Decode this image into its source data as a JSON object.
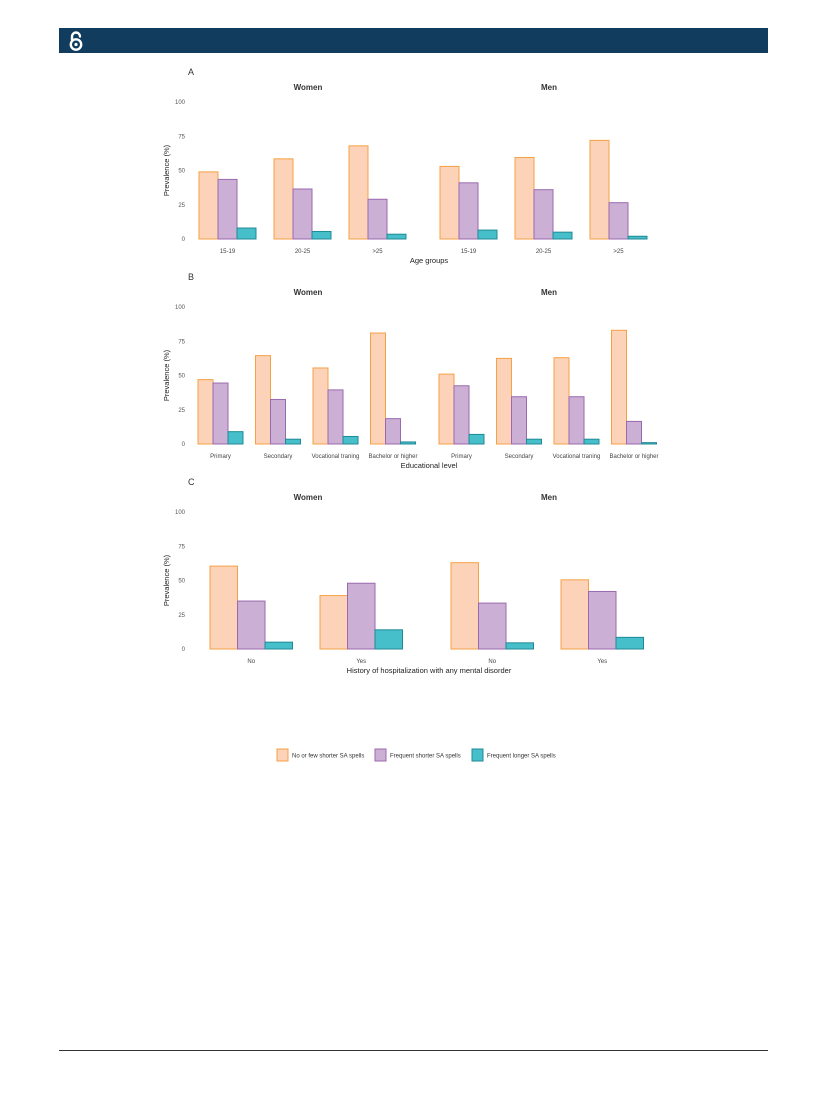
{
  "header": {
    "icon": "open-access-icon",
    "color": "#123c5e"
  },
  "colors": {
    "No or few shorter SA spells": {
      "fill": "#fcd3b8",
      "stroke": "#f5a145"
    },
    "Frequent shorter SA spells": {
      "fill": "#cbafd5",
      "stroke": "#9b6aae"
    },
    "Frequent longer SA spells": {
      "fill": "#47bfcb",
      "stroke": "#1f8a96"
    }
  },
  "chart_data": [
    {
      "type": "bar",
      "panel": "A",
      "ylabel": "Prevalence (%)",
      "xlabel": "Age groups",
      "ylim": [
        0,
        100
      ],
      "yticks": [
        0,
        25,
        50,
        75,
        100
      ],
      "facets": [
        {
          "title": "Women",
          "categories": [
            "15-19",
            "20-25",
            ">25"
          ],
          "series": [
            {
              "name": "No or few shorter SA spells",
              "values": [
                49,
                58.5,
                68
              ]
            },
            {
              "name": "Frequent shorter SA spells",
              "values": [
                43.5,
                36.5,
                29
              ]
            },
            {
              "name": "Frequent longer SA spells",
              "values": [
                8,
                5.5,
                3.5
              ]
            }
          ]
        },
        {
          "title": "Men",
          "categories": [
            "15-19",
            "20-25",
            ">25"
          ],
          "series": [
            {
              "name": "No or few shorter SA spells",
              "values": [
                53,
                59.5,
                72
              ]
            },
            {
              "name": "Frequent shorter SA spells",
              "values": [
                41,
                36,
                26.5
              ]
            },
            {
              "name": "Frequent longer SA spells",
              "values": [
                6.5,
                5,
                2
              ]
            }
          ]
        }
      ]
    },
    {
      "type": "bar",
      "panel": "B",
      "ylabel": "Prevalence (%)",
      "xlabel": "Educational level",
      "ylim": [
        0,
        100
      ],
      "yticks": [
        0,
        25,
        50,
        75,
        100
      ],
      "facets": [
        {
          "title": "Women",
          "categories": [
            "Primary",
            "Secondary",
            "Vocational traning",
            "Bachelor or higher"
          ],
          "series": [
            {
              "name": "No or few shorter SA spells",
              "values": [
                47,
                64.5,
                55.5,
                81
              ]
            },
            {
              "name": "Frequent shorter SA spells",
              "values": [
                44.5,
                32.5,
                39.5,
                18.5
              ]
            },
            {
              "name": "Frequent longer SA spells",
              "values": [
                9,
                3.5,
                5.5,
                1.5
              ]
            }
          ]
        },
        {
          "title": "Men",
          "categories": [
            "Primary",
            "Secondary",
            "Vocational traning",
            "Bachelor or higher"
          ],
          "series": [
            {
              "name": "No or few shorter SA spells",
              "values": [
                51,
                62.5,
                63,
                83
              ]
            },
            {
              "name": "Frequent shorter SA spells",
              "values": [
                42.5,
                34.5,
                34.5,
                16.5
              ]
            },
            {
              "name": "Frequent longer SA spells",
              "values": [
                7,
                3.5,
                3.5,
                1
              ]
            }
          ]
        }
      ]
    },
    {
      "type": "bar",
      "panel": "C",
      "ylabel": "Prevalence (%)",
      "xlabel": "History of hospitalization with any mental disorder",
      "ylim": [
        0,
        100
      ],
      "yticks": [
        0,
        25,
        50,
        75,
        100
      ],
      "facets": [
        {
          "title": "Women",
          "categories": [
            "No",
            "Yes"
          ],
          "series": [
            {
              "name": "No or few shorter SA spells",
              "values": [
                60.5,
                39
              ]
            },
            {
              "name": "Frequent shorter SA spells",
              "values": [
                35,
                48
              ]
            },
            {
              "name": "Frequent longer SA spells",
              "values": [
                5,
                14
              ]
            }
          ]
        },
        {
          "title": "Men",
          "categories": [
            "No",
            "Yes"
          ],
          "series": [
            {
              "name": "No or few shorter SA spells",
              "values": [
                63,
                50.5
              ]
            },
            {
              "name": "Frequent shorter SA spells",
              "values": [
                33.5,
                42
              ]
            },
            {
              "name": "Frequent longer SA spells",
              "values": [
                4.5,
                8.5
              ]
            }
          ]
        }
      ]
    }
  ],
  "legend": {
    "position": "bottom",
    "items": [
      "No or few shorter SA spells",
      "Frequent shorter SA spells",
      "Frequent longer SA spells"
    ]
  }
}
